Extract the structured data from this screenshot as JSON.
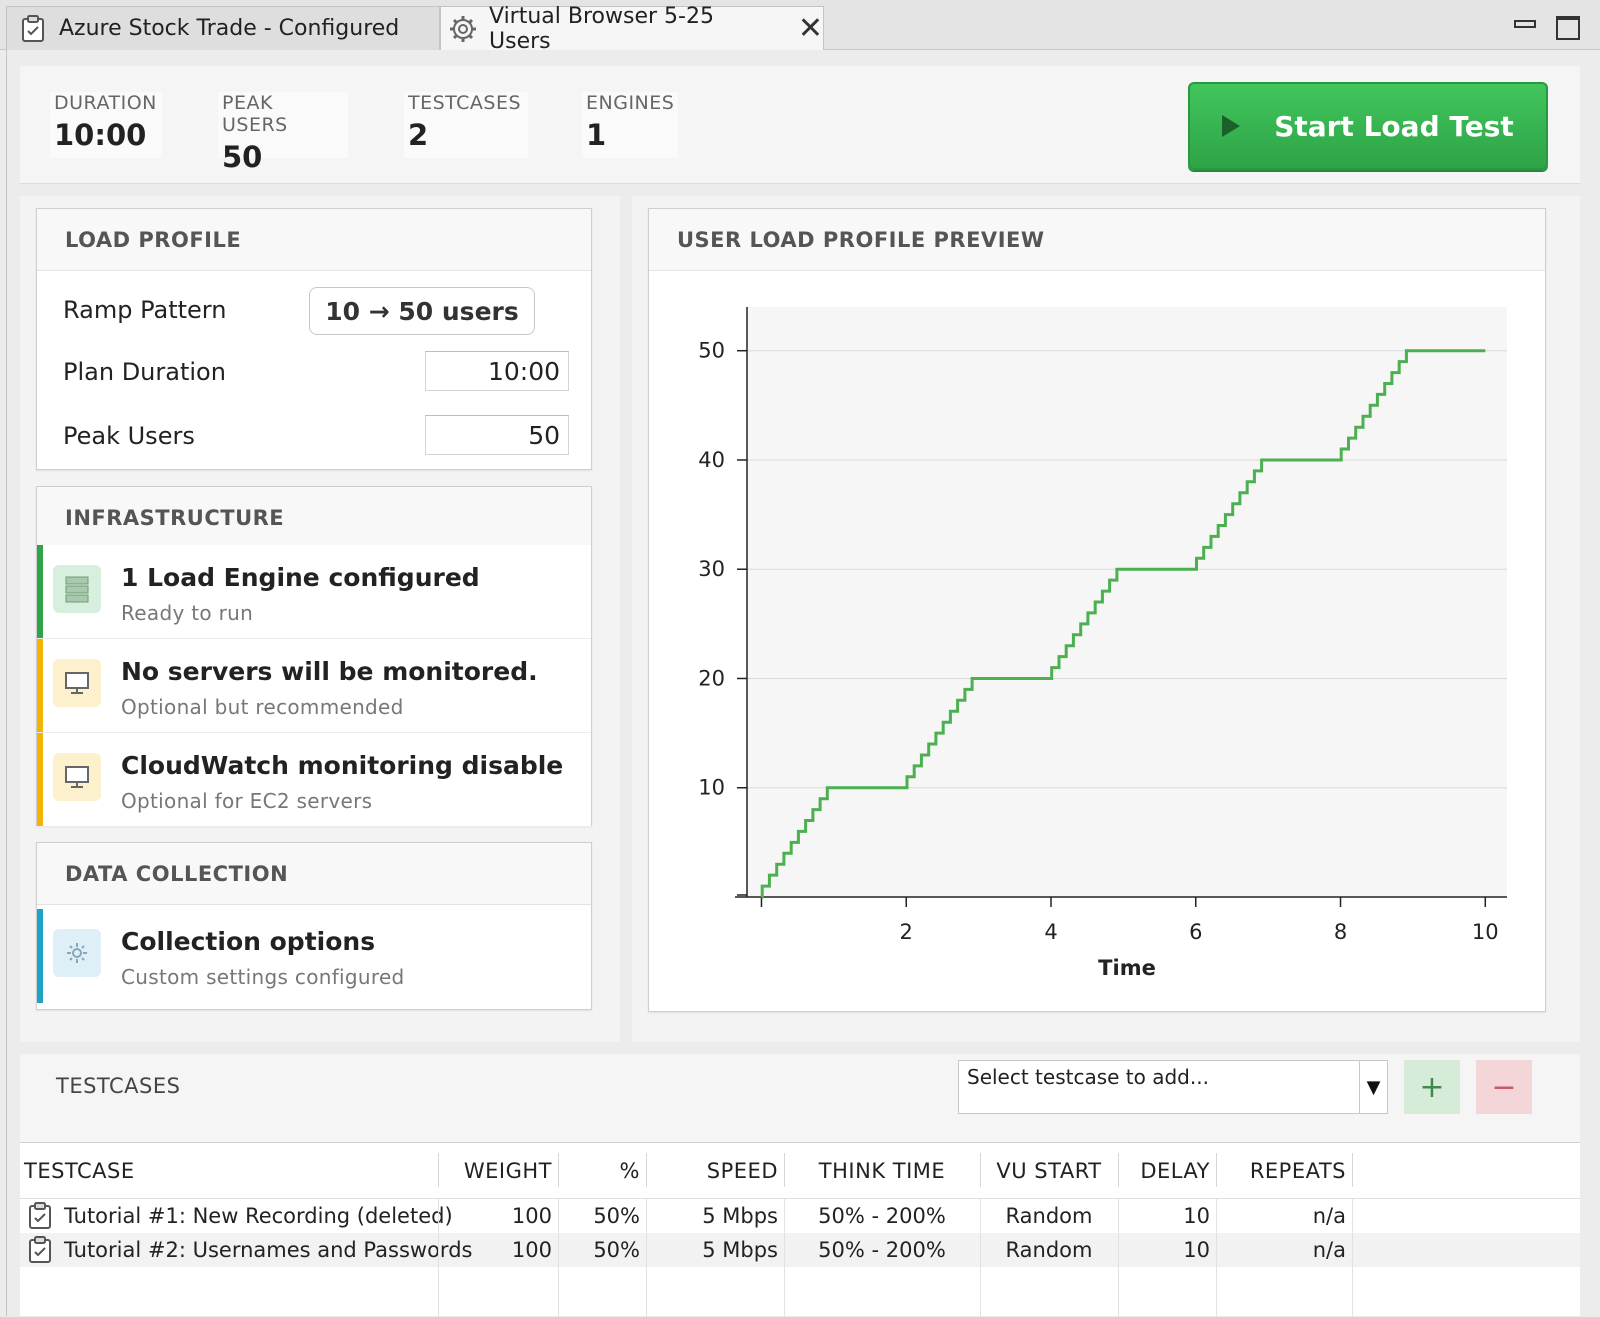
{
  "tabs": [
    {
      "label": "Azure Stock Trade - Configured"
    },
    {
      "label": "Virtual Browser 5-25 Users"
    }
  ],
  "stats": [
    {
      "label": "DURATION",
      "value": "10:00"
    },
    {
      "label": "PEAK USERS",
      "value": "50"
    },
    {
      "label": "TESTCASES",
      "value": "2"
    },
    {
      "label": "ENGINES",
      "value": "1"
    }
  ],
  "start_button": {
    "label": "Start Load Test"
  },
  "load_profile": {
    "heading": "LOAD PROFILE",
    "ramp_label": "Ramp Pattern",
    "ramp_value": "10 → 50 users",
    "duration_label": "Plan Duration",
    "duration_value": "10:00",
    "peak_label": "Peak Users",
    "peak_value": "50"
  },
  "infrastructure": {
    "heading": "INFRASTRUCTURE",
    "items": [
      {
        "title": "1 Load Engine configured",
        "sub": "Ready to run",
        "color": "#2ea447",
        "icon": "server-icon"
      },
      {
        "title": "No servers will be monitored.",
        "sub": "Optional but recommended",
        "color": "#f2b400",
        "icon": "monitor-icon"
      },
      {
        "title": "CloudWatch monitoring disable",
        "sub": "Optional for EC2 servers",
        "color": "#f2b400",
        "icon": "monitor-icon"
      }
    ]
  },
  "data_collection": {
    "heading": "DATA COLLECTION",
    "item": {
      "title": "Collection options",
      "sub": "Custom settings configured",
      "color": "#1fa2c7",
      "icon": "gear-icon"
    }
  },
  "preview": {
    "heading": "USER LOAD PROFILE PREVIEW"
  },
  "chart_data": {
    "type": "line",
    "title": "",
    "xlabel": "Time",
    "ylabel": "",
    "xlim": [
      -0.2,
      10.3
    ],
    "ylim": [
      0,
      54
    ],
    "x_ticks": [
      2,
      4,
      6,
      8,
      10
    ],
    "y_ticks": [
      10,
      20,
      30,
      40,
      50
    ],
    "grid": true,
    "series": [
      {
        "color": "#4caf50",
        "step": true,
        "x": [
          0,
          1,
          2,
          3,
          4,
          5,
          6,
          7,
          8,
          9,
          10
        ],
        "y": [
          0,
          10,
          10,
          20,
          20,
          30,
          30,
          40,
          40,
          50,
          50
        ]
      }
    ]
  },
  "testcases": {
    "label": "TESTCASES",
    "select_placeholder": "Select testcase to add...",
    "add_label": "+",
    "remove_label": "−",
    "columns": [
      "TESTCASE",
      "WEIGHT",
      "%",
      "SPEED",
      "THINK TIME",
      "VU START",
      "DELAY",
      "REPEATS"
    ],
    "rows": [
      [
        "Tutorial #1: New Recording (deleted)",
        "100",
        "50%",
        "5 Mbps",
        "50% - 200%",
        "Random",
        "10",
        "n/a"
      ],
      [
        "Tutorial #2: Usernames and Passwords",
        "100",
        "50%",
        "5 Mbps",
        "50% - 200%",
        "Random",
        "10",
        "n/a"
      ]
    ]
  }
}
